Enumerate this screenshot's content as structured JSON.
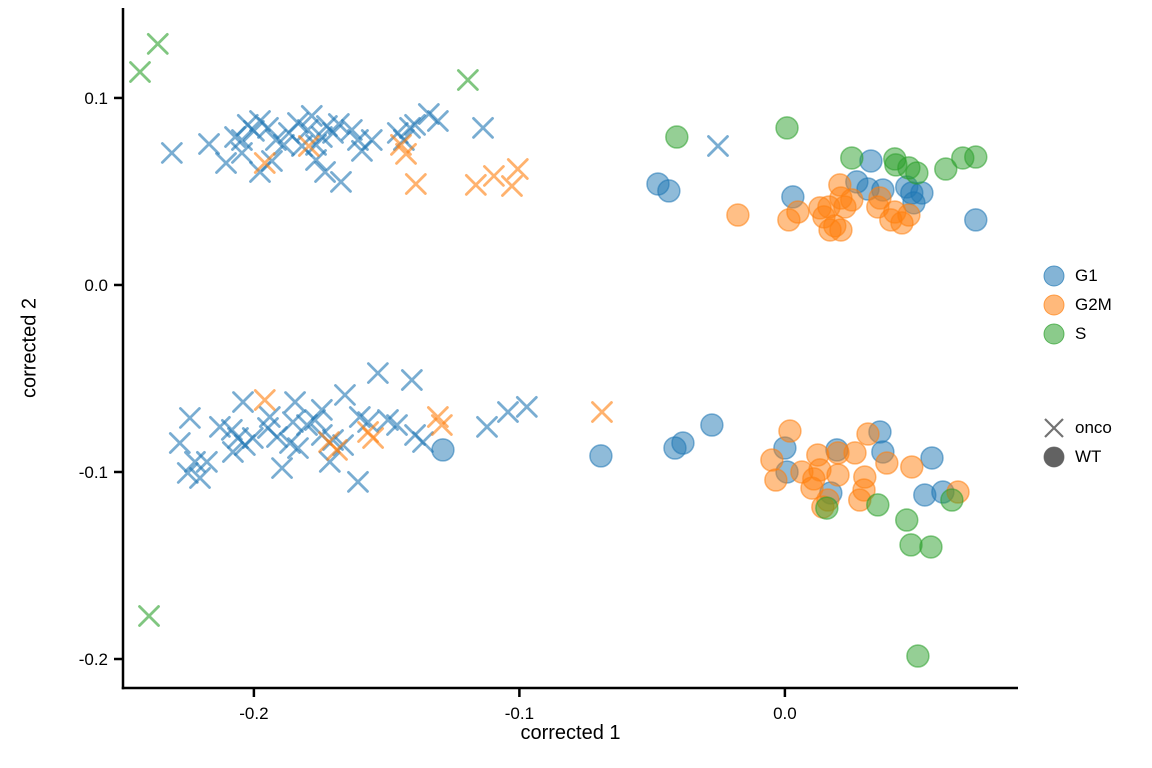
{
  "figure": {
    "xlabel": "corrected 1",
    "ylabel": "corrected 2"
  },
  "legend": {
    "color_items": [
      {
        "label": "G1",
        "color": "#1f77b4"
      },
      {
        "label": "G2M",
        "color": "#ff7f0e"
      },
      {
        "label": "S",
        "color": "#2ca02c"
      }
    ],
    "shape_items": [
      {
        "label": "onco",
        "marker": "cross"
      },
      {
        "label": "WT",
        "marker": "circle"
      }
    ],
    "shape_key_color": "#5a5a5a"
  },
  "chart_data": {
    "type": "scatter",
    "title": "",
    "xlabel": "corrected 1",
    "ylabel": "corrected 2",
    "xlim": [
      -0.2493,
      0.0878
    ],
    "ylim": [
      -0.2155,
      0.1481
    ],
    "xticks": {
      "values": [
        -0.2,
        -0.1,
        0.0
      ],
      "labels": [
        "-0.2",
        "-0.1",
        "0.0"
      ]
    },
    "yticks": {
      "values": [
        0.1,
        0.0,
        -0.1,
        -0.2
      ],
      "labels": [
        "0.1",
        "0.0",
        "-0.1",
        "-0.2"
      ]
    },
    "grid": false,
    "legend_position": "right",
    "color_key": {
      "G1": "#1f77b4",
      "G2M": "#ff7f0e",
      "S": "#2ca02c"
    },
    "shape_key": {
      "onco": "cross",
      "WT": "circle"
    },
    "series": [
      {
        "name": "G1 onco",
        "phase": "G1",
        "genotype": "onco",
        "marker": "cross",
        "color": "#1f77b4",
        "points": [
          [
            -0.2309,
            0.0706
          ],
          [
            -0.2169,
            0.0754
          ],
          [
            -0.2105,
            0.0652
          ],
          [
            -0.2071,
            0.0791
          ],
          [
            -0.2045,
            0.0775
          ],
          [
            -0.2023,
            0.0856
          ],
          [
            -0.2,
            0.0824
          ],
          [
            -0.2045,
            0.0706
          ],
          [
            -0.1977,
            0.0877
          ],
          [
            -0.1947,
            0.084
          ],
          [
            -0.1977,
            0.0604
          ],
          [
            -0.1932,
            0.0663
          ],
          [
            -0.1917,
            0.0775
          ],
          [
            -0.1887,
            0.0749
          ],
          [
            -0.1868,
            0.0813
          ],
          [
            -0.1834,
            0.0866
          ],
          [
            -0.1819,
            0.0743
          ],
          [
            -0.1797,
            0.0829
          ],
          [
            -0.1766,
            0.0749
          ],
          [
            -0.1744,
            0.0791
          ],
          [
            -0.1725,
            0.085
          ],
          [
            -0.1702,
            0.0813
          ],
          [
            -0.168,
            0.0861
          ],
          [
            -0.1782,
            0.0904
          ],
          [
            -0.1631,
            0.0829
          ],
          [
            -0.1608,
            0.0775
          ],
          [
            -0.1766,
            0.0668
          ],
          [
            -0.1732,
            0.0604
          ],
          [
            -0.1672,
            0.0551
          ],
          [
            -0.1593,
            0.0717
          ],
          [
            -0.1556,
            0.0775
          ],
          [
            -0.1458,
            0.0813
          ],
          [
            -0.1435,
            0.0775
          ],
          [
            -0.1412,
            0.084
          ],
          [
            -0.1393,
            0.0856
          ],
          [
            -0.1341,
            0.0914
          ],
          [
            -0.1307,
            0.0877
          ],
          [
            -0.1137,
            0.084
          ],
          [
            -0.0252,
            0.0743
          ],
          [
            -0.1533,
            -0.0471
          ],
          [
            -0.1405,
            -0.0508
          ],
          [
            -0.1657,
            -0.0588
          ],
          [
            -0.2041,
            -0.0626
          ],
          [
            -0.1845,
            -0.0626
          ],
          [
            -0.1744,
            -0.0668
          ],
          [
            -0.2241,
            -0.0711
          ],
          [
            -0.1043,
            -0.0679
          ],
          [
            -0.1122,
            -0.0759
          ],
          [
            -0.2128,
            -0.0759
          ],
          [
            -0.2083,
            -0.0775
          ],
          [
            -0.194,
            -0.0706
          ],
          [
            -0.1947,
            -0.0765
          ],
          [
            -0.2004,
            -0.0818
          ],
          [
            -0.2034,
            -0.0856
          ],
          [
            -0.206,
            -0.0818
          ],
          [
            -0.1913,
            -0.0813
          ],
          [
            -0.1853,
            -0.0733
          ],
          [
            -0.18,
            -0.0749
          ],
          [
            -0.177,
            -0.0722
          ],
          [
            -0.1864,
            -0.0845
          ],
          [
            -0.1834,
            -0.0872
          ],
          [
            -0.2279,
            -0.0845
          ],
          [
            -0.1744,
            -0.0802
          ],
          [
            -0.1702,
            -0.0829
          ],
          [
            -0.1664,
            -0.0856
          ],
          [
            -0.1601,
            -0.0706
          ],
          [
            -0.157,
            -0.0733
          ],
          [
            -0.1495,
            -0.0722
          ],
          [
            -0.1461,
            -0.0749
          ],
          [
            -0.1393,
            -0.0802
          ],
          [
            -0.1363,
            -0.084
          ],
          [
            -0.2222,
            -0.0946
          ],
          [
            -0.2177,
            -0.0946
          ],
          [
            -0.2249,
            -0.1005
          ],
          [
            -0.2203,
            -0.1032
          ],
          [
            -0.2079,
            -0.0893
          ],
          [
            -0.1894,
            -0.0979
          ],
          [
            -0.1714,
            -0.0946
          ],
          [
            -0.1608,
            -0.1053
          ],
          [
            -0.0972,
            -0.0652
          ]
        ]
      },
      {
        "name": "G2M onco",
        "phase": "G2M",
        "genotype": "onco",
        "marker": "cross",
        "color": "#ff7f0e",
        "points": [
          [
            -0.1959,
            0.0652
          ],
          [
            -0.1793,
            0.0743
          ],
          [
            -0.1446,
            0.0749
          ],
          [
            -0.1427,
            0.0701
          ],
          [
            -0.139,
            0.054
          ],
          [
            -0.1164,
            0.0535
          ],
          [
            -0.1096,
            0.0583
          ],
          [
            -0.1006,
            0.062
          ],
          [
            -0.1028,
            0.0529
          ],
          [
            -0.1959,
            -0.0615
          ],
          [
            -0.1717,
            -0.084
          ],
          [
            -0.1687,
            -0.0882
          ],
          [
            -0.157,
            -0.0786
          ],
          [
            -0.1551,
            -0.0818
          ],
          [
            -0.1307,
            -0.0706
          ],
          [
            -0.1292,
            -0.0749
          ],
          [
            -0.0689,
            -0.0679
          ]
        ]
      },
      {
        "name": "S onco",
        "phase": "S",
        "genotype": "onco",
        "marker": "cross",
        "color": "#2ca02c",
        "points": [
          [
            -0.2362,
            0.1289
          ],
          [
            -0.2429,
            0.1139
          ],
          [
            -0.1194,
            0.1096
          ],
          [
            -0.2395,
            -0.177
          ]
        ]
      },
      {
        "name": "G1 WT",
        "phase": "G1",
        "genotype": "WT",
        "marker": "circle",
        "color": "#1f77b4",
        "points": [
          [
            -0.0478,
            0.054
          ],
          [
            -0.0437,
            0.0503
          ],
          [
            0.003,
            0.0471
          ],
          [
            0.0271,
            0.0551
          ],
          [
            0.0324,
            0.0663
          ],
          [
            0.0313,
            0.0513
          ],
          [
            0.0369,
            0.0508
          ],
          [
            0.0459,
            0.0524
          ],
          [
            0.0478,
            0.0492
          ],
          [
            0.0516,
            0.0492
          ],
          [
            0.0486,
            0.0439
          ],
          [
            0.0719,
            0.0348
          ],
          [
            -0.1288,
            -0.0882
          ],
          [
            -0.0693,
            -0.0914
          ],
          [
            -0.0414,
            -0.0872
          ],
          [
            -0.0384,
            -0.0845
          ],
          [
            -0.0275,
            -0.0749
          ],
          [
            0.0,
            -0.0872
          ],
          [
            0.0008,
            -0.1
          ],
          [
            0.0196,
            -0.0882
          ],
          [
            0.0358,
            -0.0786
          ],
          [
            0.0369,
            -0.0893
          ],
          [
            0.0173,
            -0.1112
          ],
          [
            0.0554,
            -0.0925
          ],
          [
            0.0527,
            -0.1123
          ],
          [
            0.0595,
            -0.1107
          ]
        ]
      },
      {
        "name": "G2M WT",
        "phase": "G2M",
        "genotype": "WT",
        "marker": "circle",
        "color": "#ff7f0e",
        "points": [
          [
            -0.0177,
            0.0374
          ],
          [
            0.0015,
            0.0348
          ],
          [
            0.0049,
            0.039
          ],
          [
            0.0132,
            0.0412
          ],
          [
            0.0147,
            0.0364
          ],
          [
            0.0207,
            0.0535
          ],
          [
            0.0211,
            0.0465
          ],
          [
            0.0252,
            0.0455
          ],
          [
            0.0166,
            0.0417
          ],
          [
            0.0226,
            0.0417
          ],
          [
            0.0358,
            0.0465
          ],
          [
            0.035,
            0.0417
          ],
          [
            0.0414,
            0.039
          ],
          [
            0.0467,
            0.0374
          ],
          [
            0.0399,
            0.0348
          ],
          [
            0.0441,
            0.0332
          ],
          [
            0.0188,
            0.0316
          ],
          [
            0.0211,
            0.0294
          ],
          [
            0.017,
            0.0294
          ],
          [
            0.0019,
            -0.0781
          ],
          [
            -0.0049,
            -0.0936
          ],
          [
            -0.0034,
            -0.1043
          ],
          [
            0.0064,
            -0.1
          ],
          [
            0.0124,
            -0.0909
          ],
          [
            0.0132,
            -0.0989
          ],
          [
            0.0109,
            -0.1037
          ],
          [
            0.0102,
            -0.1086
          ],
          [
            0.02,
            -0.0898
          ],
          [
            0.02,
            -0.1016
          ],
          [
            0.0264,
            -0.0898
          ],
          [
            0.0313,
            -0.0797
          ],
          [
            0.0301,
            -0.1027
          ],
          [
            0.0298,
            -0.1096
          ],
          [
            0.0282,
            -0.115
          ],
          [
            0.0162,
            -0.115
          ],
          [
            0.0143,
            -0.1187
          ],
          [
            0.0384,
            -0.0952
          ],
          [
            0.0478,
            -0.0973
          ],
          [
            0.0652,
            -0.1107
          ]
        ]
      },
      {
        "name": "S WT",
        "phase": "S",
        "genotype": "WT",
        "marker": "circle",
        "color": "#2ca02c",
        "points": [
          [
            -0.0407,
            0.0791
          ],
          [
            0.0008,
            0.084
          ],
          [
            0.0252,
            0.0679
          ],
          [
            0.0414,
            0.0674
          ],
          [
            0.0418,
            0.0642
          ],
          [
            0.0467,
            0.0626
          ],
          [
            0.0497,
            0.0599
          ],
          [
            0.0606,
            0.062
          ],
          [
            0.067,
            0.0679
          ],
          [
            0.0719,
            0.0684
          ],
          [
            0.035,
            -0.1176
          ],
          [
            0.0158,
            -0.1193
          ],
          [
            0.0459,
            -0.1257
          ],
          [
            0.0629,
            -0.115
          ],
          [
            0.0475,
            -0.139
          ],
          [
            0.055,
            -0.1401
          ],
          [
            0.0501,
            -0.1984
          ]
        ]
      }
    ]
  }
}
